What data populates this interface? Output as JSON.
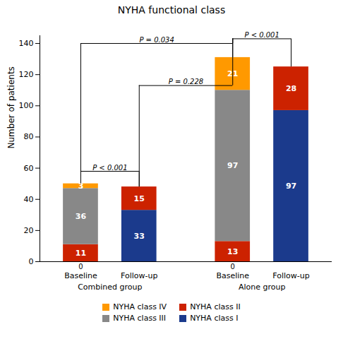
{
  "chart_data": {
    "type": "bar",
    "title": "NYHA functional class",
    "ylabel": "Number of patients",
    "categories": [
      "Baseline",
      "Follow-up",
      "Baseline",
      "Follow-up"
    ],
    "groups": [
      {
        "name": "Combined group",
        "members": [
          0,
          1
        ]
      },
      {
        "name": "Alone group",
        "members": [
          2,
          3
        ]
      }
    ],
    "series": [
      {
        "name": "NYHA class I",
        "color": "#1b3a8c",
        "values": [
          0,
          33,
          0,
          97
        ]
      },
      {
        "name": "NYHA class II",
        "color": "#cc2200",
        "values": [
          11,
          15,
          13,
          28
        ]
      },
      {
        "name": "NYHA class III",
        "color": "#888888",
        "values": [
          36,
          0,
          97,
          0
        ],
        "value_labels": [
          "36",
          null,
          "97",
          null
        ]
      },
      {
        "name": "NYHA class IV",
        "color": "#ff9900",
        "values": [
          3,
          0,
          21,
          0
        ],
        "value_labels": [
          "3",
          null,
          "21",
          null
        ]
      }
    ],
    "stacked": true,
    "data_labels": true,
    "legend": "bottom",
    "grid": false,
    "ylim": [
      0,
      145
    ],
    "yticks": [
      0,
      20,
      40,
      60,
      80,
      100,
      120,
      140
    ],
    "annotations": [
      {
        "text": "P < 0.001",
        "x": [
          0,
          1
        ],
        "y": 58
      },
      {
        "text": "P < 0.001",
        "x": [
          2,
          3
        ],
        "y": 143
      },
      {
        "text": "P = 0.034",
        "x": [
          0,
          2
        ],
        "y": 140,
        "y_start": [
          58,
          143
        ]
      },
      {
        "text": "P = 0.228",
        "x": [
          1,
          2
        ],
        "y": 113,
        "y_start": [
          null,
          143
        ]
      }
    ]
  }
}
